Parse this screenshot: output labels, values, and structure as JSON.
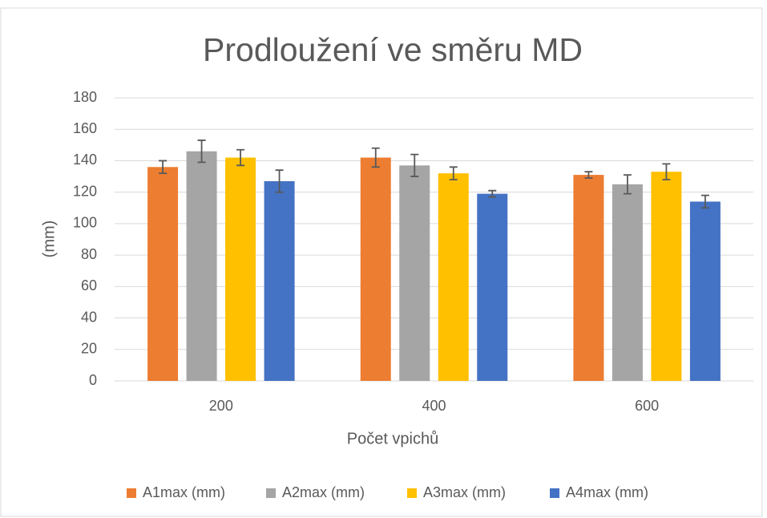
{
  "chart_data": {
    "type": "bar",
    "title": "Prodloužení ve směru MD",
    "x_label": "Počet vpichů",
    "y_label": "(mm)",
    "categories": [
      "200",
      "400",
      "600"
    ],
    "series": [
      {
        "name": "A1max (mm)",
        "color": "#ed7d31",
        "values": [
          136,
          142,
          131
        ],
        "errors": [
          4,
          6,
          2
        ]
      },
      {
        "name": "A2max (mm)",
        "color": "#a5a5a5",
        "values": [
          146,
          137,
          125
        ],
        "errors": [
          7,
          7,
          6
        ]
      },
      {
        "name": "A3max (mm)",
        "color": "#ffc000",
        "values": [
          142,
          132,
          133
        ],
        "errors": [
          5,
          4,
          5
        ]
      },
      {
        "name": "A4max (mm)",
        "color": "#4472c4",
        "values": [
          127,
          119,
          114
        ],
        "errors": [
          7,
          2,
          4
        ]
      }
    ],
    "ylim": [
      0,
      180
    ],
    "yticks": [
      0,
      20,
      40,
      60,
      80,
      100,
      120,
      140,
      160,
      180
    ],
    "grid": true,
    "legend": "bottom"
  }
}
